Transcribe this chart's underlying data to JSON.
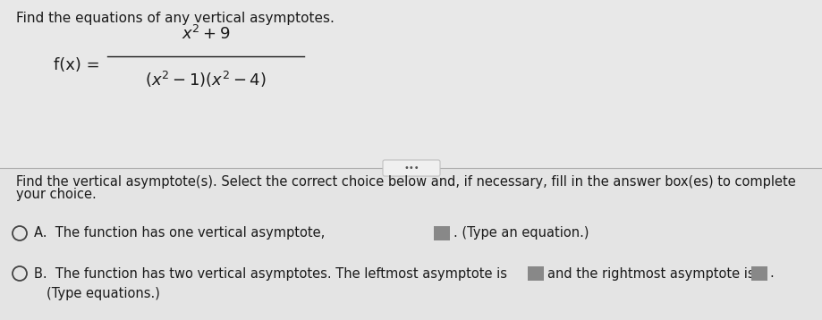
{
  "background_color": "#f0f0f0",
  "top_section_bg": "#e8e8e8",
  "bottom_section_bg": "#e4e4e4",
  "title_text": "Find the equations of any vertical asymptotes.",
  "title_fontsize": 11.0,
  "formula_numerator": "$x^2+9$",
  "formula_denominator": "$(x^2-1)(x^2-4)$",
  "formula_fx": "f(x) =",
  "formula_fontsize": 13,
  "divider_text": "•••",
  "instruction_line1": "Find the vertical asymptote(s). Select the correct choice below and, if necessary, fill in the answer box(es) to complete",
  "instruction_line2": "your choice.",
  "instruction_fontsize": 10.5,
  "option_A_main": "A.  The function has one vertical asymptote,",
  "option_A_suffix": ". (Type an equation.)",
  "option_B_main": "B.  The function has two vertical asymptotes. The leftmost asymptote is",
  "option_B_mid": "and the rightmost asymptote is",
  "option_B_line2": "(Type equations.)",
  "option_fontsize": 10.5,
  "text_color": "#1a1a1a",
  "box_fill": "#888888",
  "circle_stroke": "#444444"
}
